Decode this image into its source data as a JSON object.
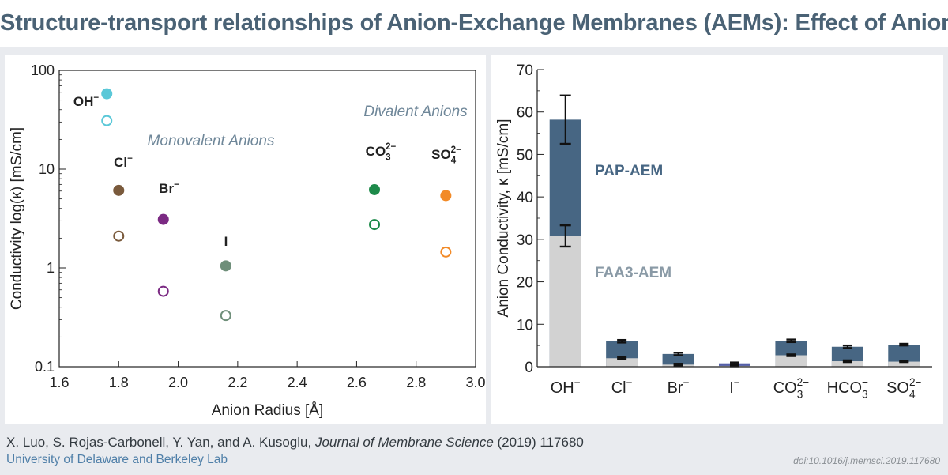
{
  "header": {
    "title": "Structure-transport relationships of Anion-Exchange Membranes (AEMs): Effect of Anion Type"
  },
  "colors": {
    "title": "#4a6275",
    "pap": "#476683",
    "faa3": "#d2d2d2",
    "iodide_pap": "#5560a8",
    "annotation": "#6f8799",
    "affiliation": "#4f7fa8"
  },
  "chart_data": [
    {
      "type": "scatter",
      "xlabel": "Anion Radius [Å]",
      "ylabel": "Conductivity log(κ) [mS/cm]",
      "xlim": [
        1.6,
        3.0
      ],
      "ylim": [
        0.1,
        100
      ],
      "yscale": "log",
      "grid": false,
      "x_ticks": [
        "1.6",
        "1.8",
        "2.0",
        "2.2",
        "2.4",
        "2.6",
        "2.8",
        "3.0"
      ],
      "y_ticks": [
        "0.1",
        "1",
        "10",
        "100"
      ],
      "annotations": [
        "Monovalent Anions",
        "Divalent Anions"
      ],
      "series": [
        {
          "marker": "filled",
          "points": [
            {
              "anion": "OH⁻",
              "x": 1.76,
              "y": 58,
              "color": "#5bc8d8"
            },
            {
              "anion": "Cl⁻",
              "x": 1.8,
              "y": 6.1,
              "color": "#7a5a3c"
            },
            {
              "anion": "Br⁻",
              "x": 1.95,
              "y": 3.1,
              "color": "#7b2a83"
            },
            {
              "anion": "I",
              "x": 2.16,
              "y": 1.05,
              "color": "#6f8f7a"
            },
            {
              "anion": "CO₃²⁻",
              "x": 2.66,
              "y": 6.2,
              "color": "#1d8a4a"
            },
            {
              "anion": "SO₄²⁻",
              "x": 2.9,
              "y": 5.4,
              "color": "#f28a27"
            }
          ]
        },
        {
          "marker": "open",
          "points": [
            {
              "anion": "OH⁻",
              "x": 1.76,
              "y": 31,
              "color": "#5bc8d8"
            },
            {
              "anion": "Cl⁻",
              "x": 1.8,
              "y": 2.1,
              "color": "#7a5a3c"
            },
            {
              "anion": "Br⁻",
              "x": 1.95,
              "y": 0.58,
              "color": "#7b2a83"
            },
            {
              "anion": "I",
              "x": 2.16,
              "y": 0.33,
              "color": "#6f8f7a"
            },
            {
              "anion": "CO₃²⁻",
              "x": 2.66,
              "y": 2.75,
              "color": "#1d8a4a"
            },
            {
              "anion": "SO₄²⁻",
              "x": 2.9,
              "y": 1.45,
              "color": "#f28a27"
            }
          ]
        }
      ]
    },
    {
      "type": "bar",
      "ylabel": "Anion Conductivity, κ [mS/cm]",
      "ylim": [
        0,
        70
      ],
      "y_ticks": [
        "0",
        "10",
        "20",
        "30",
        "40",
        "50",
        "60",
        "70"
      ],
      "categories": [
        {
          "base": "OH",
          "sub": "",
          "sup": "−"
        },
        {
          "base": "Cl",
          "sub": "",
          "sup": "−"
        },
        {
          "base": "Br",
          "sub": "",
          "sup": "−"
        },
        {
          "base": "I",
          "sub": "",
          "sup": "−"
        },
        {
          "base": "CO",
          "sub": "3",
          "sup": "2−"
        },
        {
          "base": "HCO",
          "sub": "3",
          "sup": "−"
        },
        {
          "base": "SO",
          "sub": "4",
          "sup": "2−"
        }
      ],
      "series": [
        {
          "name": "PAP-AEM",
          "values": [
            58.2,
            6.0,
            3.0,
            0.8,
            6.1,
            4.7,
            5.2
          ],
          "errors": [
            5.7,
            0.3,
            0.3,
            0.2,
            0.3,
            0.3,
            0.2
          ]
        },
        {
          "name": "FAA3-AEM",
          "values": [
            30.8,
            2.0,
            0.5,
            0.2,
            2.7,
            1.3,
            1.2
          ],
          "errors": [
            2.5,
            0.2,
            0.2,
            0.1,
            0.2,
            0.2,
            0.1
          ]
        }
      ]
    }
  ],
  "footer": {
    "authors": "X. Luo, S. Rojas-Carbonell, Y. Yan, and A. Kusoglu, ",
    "journal": "Journal of Membrane Science",
    "year_id": " (2019) 117680",
    "affiliation": "University of Delaware and Berkeley Lab",
    "doi": "doi:10.1016/j.memsci.2019.117680"
  }
}
